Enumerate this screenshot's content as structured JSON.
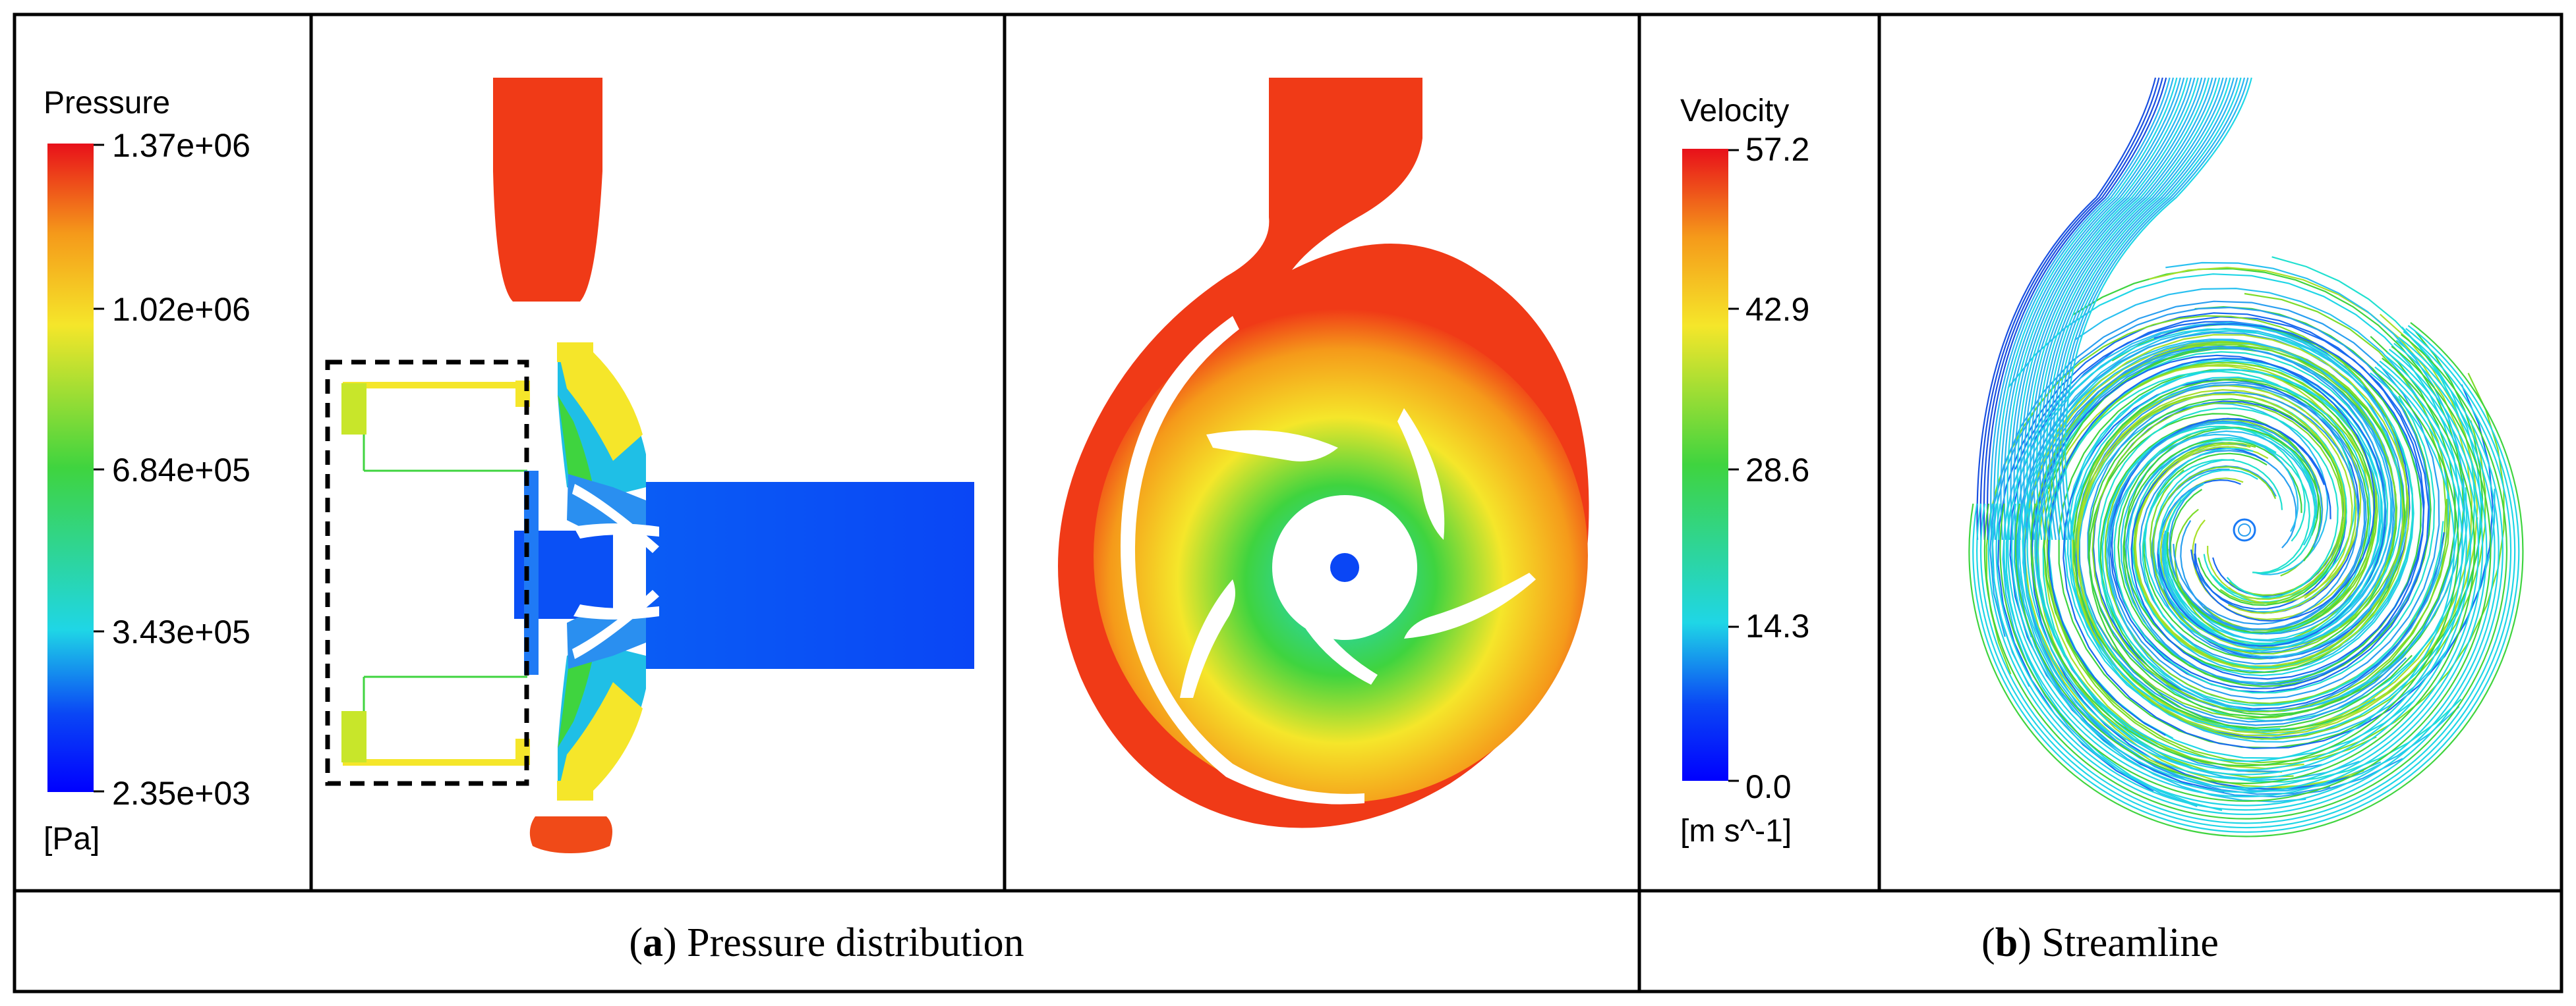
{
  "pressure_legend": {
    "title": "Pressure",
    "unit": "[Pa]",
    "ticks": [
      "1.37e+06",
      "1.02e+06",
      "6.84e+05",
      "3.43e+05",
      "2.35e+03"
    ]
  },
  "velocity_legend": {
    "title": "Velocity",
    "unit": "[m s^-1]",
    "ticks": [
      "57.2",
      "42.9",
      "28.6",
      "14.3",
      "0.0"
    ]
  },
  "captions": {
    "a": {
      "letter": "a",
      "text": " Pressure distribution"
    },
    "b": {
      "letter": "b",
      "text": " Streamline"
    }
  },
  "colors": {
    "high": "#f03a17",
    "mid_high": "#f5e62a",
    "mid": "#3fd43f",
    "mid_low": "#1fd6e6",
    "low": "#0a46f5",
    "frame": "#000000"
  }
}
